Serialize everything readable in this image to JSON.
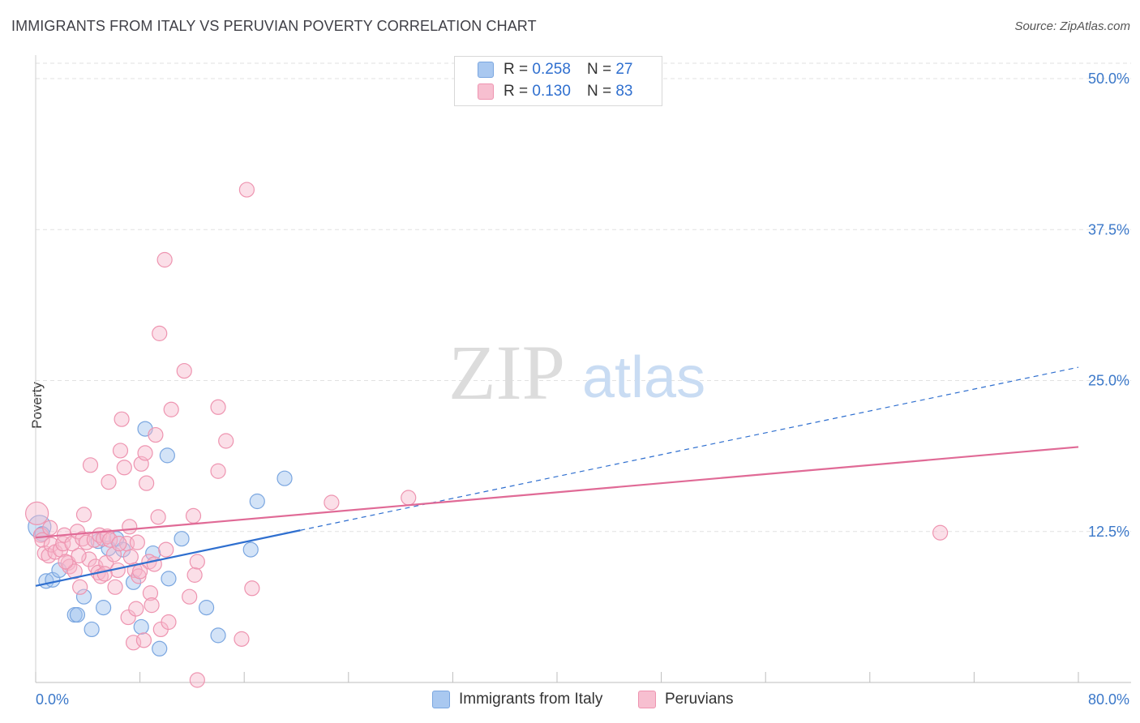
{
  "title": "IMMIGRANTS FROM ITALY VS PERUVIAN POVERTY CORRELATION CHART",
  "source": "Source: ZipAtlas.com",
  "watermark": {
    "zip": "ZIP",
    "atlas": "atlas"
  },
  "legend": [
    {
      "r_label": "R =",
      "r_value": "0.258",
      "n_label": "N =",
      "n_value": "27",
      "color": "#a9c8f0",
      "border": "#7aa6e0"
    },
    {
      "r_label": "R =",
      "r_value": "0.130",
      "n_label": "N =",
      "n_value": "83",
      "color": "#f7bfd0",
      "border": "#ee94b0"
    }
  ],
  "bottom_legend": [
    {
      "label": "Immigrants from Italy",
      "color": "#a9c8f0",
      "border": "#7aa6e0"
    },
    {
      "label": "Peruvians",
      "color": "#f7bfd0",
      "border": "#ee94b0"
    }
  ],
  "chart_data": {
    "type": "scatter",
    "title": "IMMIGRANTS FROM ITALY VS PERUVIAN POVERTY CORRELATION CHART",
    "xlabel": "",
    "ylabel": "Poverty",
    "xlim": [
      0,
      80
    ],
    "ylim": [
      0,
      50
    ],
    "x_tick_labels": [
      {
        "value": 0,
        "label": "0.0%"
      },
      {
        "value": 80,
        "label": "80.0%"
      }
    ],
    "y_tick_labels": [
      {
        "value": 12.5,
        "label": "12.5%"
      },
      {
        "value": 25.0,
        "label": "25.0%"
      },
      {
        "value": 37.5,
        "label": "37.5%"
      },
      {
        "value": 50.0,
        "label": "50.0%"
      }
    ],
    "series": [
      {
        "name": "Immigrants from Italy",
        "color": "#7aa6e0",
        "fill": "rgba(158,192,238,0.45)",
        "trend_color": "#2f6fcf",
        "trend": {
          "x0": 0,
          "y0": 8.0,
          "x_solid_end": 20.3,
          "y_solid_end": 12.6,
          "x1": 80,
          "y1": 26.1
        },
        "points": [
          [
            0.3,
            12.9
          ],
          [
            0.8,
            8.4
          ],
          [
            1.3,
            8.5
          ],
          [
            1.8,
            9.3
          ],
          [
            3.0,
            5.6
          ],
          [
            3.2,
            5.6
          ],
          [
            3.7,
            7.1
          ],
          [
            4.3,
            4.4
          ],
          [
            4.8,
            11.7
          ],
          [
            5.2,
            6.2
          ],
          [
            5.6,
            11.1
          ],
          [
            6.2,
            11.9
          ],
          [
            6.7,
            11.0
          ],
          [
            7.5,
            8.3
          ],
          [
            8.1,
            4.6
          ],
          [
            8.4,
            21.0
          ],
          [
            9.0,
            10.7
          ],
          [
            9.5,
            2.8
          ],
          [
            10.1,
            18.8
          ],
          [
            10.2,
            8.6
          ],
          [
            11.2,
            11.9
          ],
          [
            13.1,
            6.2
          ],
          [
            14.0,
            3.9
          ],
          [
            16.5,
            11.0
          ],
          [
            17.0,
            15.0
          ],
          [
            19.1,
            16.9
          ],
          [
            0.5,
            12.3
          ]
        ]
      },
      {
        "name": "Peruvians",
        "color": "#ee94b0",
        "fill": "rgba(247,185,205,0.45)",
        "trend_color": "#e06a96",
        "trend": {
          "x0": 0,
          "y0": 12.0,
          "x1": 80,
          "y1": 19.5
        },
        "points": [
          [
            0.1,
            14.0
          ],
          [
            0.4,
            12.2
          ],
          [
            0.5,
            11.8
          ],
          [
            0.7,
            10.7
          ],
          [
            1.0,
            10.5
          ],
          [
            1.2,
            11.4
          ],
          [
            1.5,
            10.8
          ],
          [
            1.9,
            11.0
          ],
          [
            2.1,
            11.5
          ],
          [
            2.2,
            12.2
          ],
          [
            2.5,
            9.9
          ],
          [
            2.6,
            9.6
          ],
          [
            2.8,
            11.5
          ],
          [
            3.0,
            9.2
          ],
          [
            3.2,
            12.5
          ],
          [
            3.4,
            7.9
          ],
          [
            3.6,
            11.9
          ],
          [
            3.7,
            13.9
          ],
          [
            3.9,
            11.6
          ],
          [
            4.1,
            10.2
          ],
          [
            4.2,
            18.0
          ],
          [
            4.5,
            11.8
          ],
          [
            4.6,
            9.6
          ],
          [
            4.8,
            9.1
          ],
          [
            4.9,
            12.2
          ],
          [
            5.0,
            8.8
          ],
          [
            5.2,
            11.9
          ],
          [
            5.4,
            9.9
          ],
          [
            5.5,
            12.1
          ],
          [
            5.6,
            16.6
          ],
          [
            5.7,
            11.8
          ],
          [
            6.0,
            10.6
          ],
          [
            6.1,
            7.9
          ],
          [
            6.3,
            9.3
          ],
          [
            6.5,
            19.2
          ],
          [
            6.6,
            21.8
          ],
          [
            6.8,
            17.8
          ],
          [
            7.0,
            11.5
          ],
          [
            7.1,
            5.4
          ],
          [
            7.2,
            12.9
          ],
          [
            7.3,
            10.4
          ],
          [
            7.5,
            3.3
          ],
          [
            7.6,
            9.3
          ],
          [
            7.7,
            6.1
          ],
          [
            7.8,
            11.6
          ],
          [
            7.9,
            8.8
          ],
          [
            8.1,
            18.1
          ],
          [
            8.3,
            3.5
          ],
          [
            8.4,
            19.0
          ],
          [
            8.5,
            16.5
          ],
          [
            8.7,
            10.0
          ],
          [
            8.8,
            7.4
          ],
          [
            8.9,
            6.4
          ],
          [
            9.1,
            9.8
          ],
          [
            9.2,
            20.5
          ],
          [
            9.4,
            13.7
          ],
          [
            9.5,
            28.9
          ],
          [
            9.6,
            4.4
          ],
          [
            9.9,
            35.0
          ],
          [
            10.0,
            11.0
          ],
          [
            10.2,
            5.0
          ],
          [
            10.4,
            22.6
          ],
          [
            11.4,
            25.8
          ],
          [
            11.8,
            7.1
          ],
          [
            12.1,
            13.8
          ],
          [
            12.2,
            8.9
          ],
          [
            12.4,
            10.0
          ],
          [
            12.4,
            0.2
          ],
          [
            14.0,
            17.5
          ],
          [
            14.0,
            22.8
          ],
          [
            14.6,
            20.0
          ],
          [
            15.8,
            3.6
          ],
          [
            16.2,
            40.8
          ],
          [
            16.6,
            7.8
          ],
          [
            22.7,
            14.9
          ],
          [
            28.6,
            15.3
          ],
          [
            69.4,
            12.4
          ],
          [
            2.3,
            10.0
          ],
          [
            3.3,
            10.5
          ],
          [
            5.3,
            9.0
          ],
          [
            6.4,
            11.5
          ],
          [
            8.0,
            9.2
          ],
          [
            1.1,
            12.8
          ]
        ]
      }
    ]
  }
}
